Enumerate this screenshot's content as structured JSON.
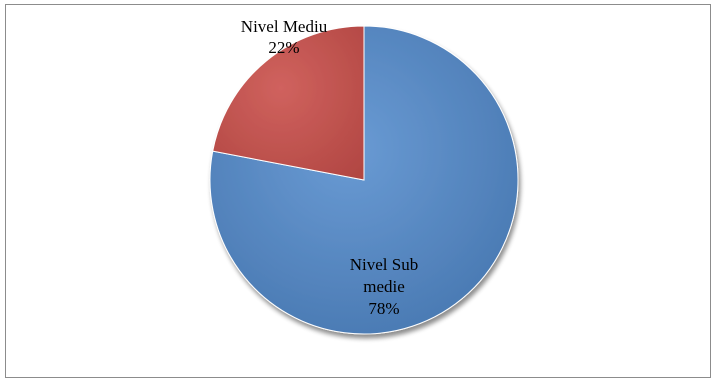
{
  "chart_data": {
    "type": "pie",
    "categories": [
      "Nivel Sub medie",
      "Nivel Mediu"
    ],
    "values": [
      78,
      22
    ],
    "value_labels": [
      "78%",
      "22%"
    ],
    "label_lines": [
      [
        "Nivel Sub",
        "medie",
        "78%"
      ],
      [
        "Nivel Mediu",
        "22%"
      ]
    ],
    "colors": [
      "#4f81bd",
      "#c0504d"
    ],
    "title": "",
    "legend": "none"
  }
}
